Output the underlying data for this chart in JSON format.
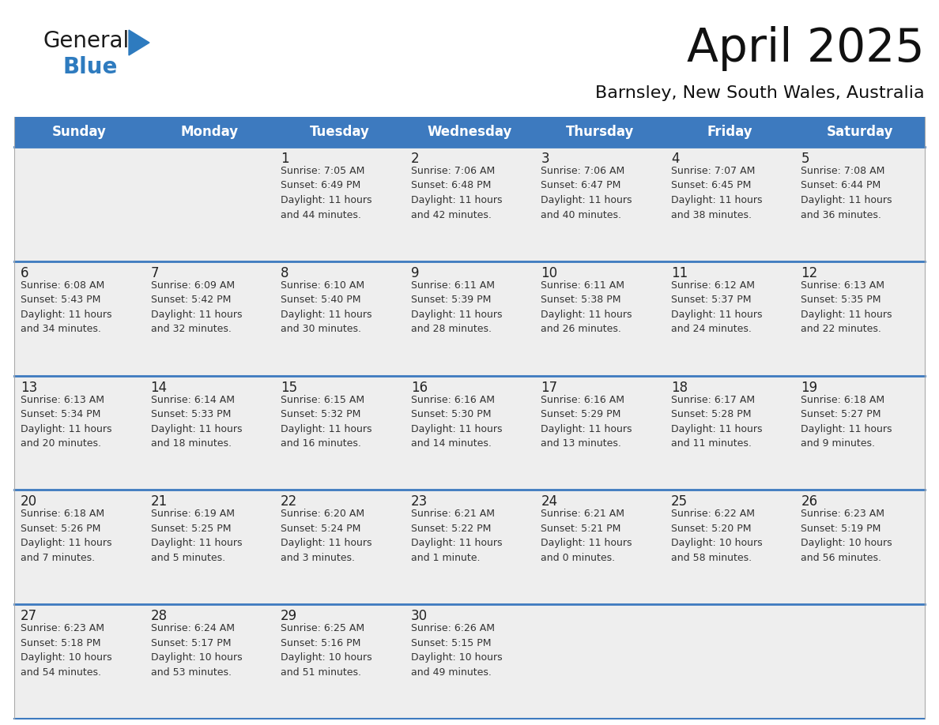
{
  "title": "April 2025",
  "subtitle": "Barnsley, New South Wales, Australia",
  "header_bg": "#3d7abf",
  "header_text": "#ffffff",
  "row_bg": "#eeeeee",
  "cell_text": "#333333",
  "blue_line": "#3d7abf",
  "days_of_week": [
    "Sunday",
    "Monday",
    "Tuesday",
    "Wednesday",
    "Thursday",
    "Friday",
    "Saturday"
  ],
  "logo_general_color": "#1a1a1a",
  "logo_blue_color": "#2e7bbf",
  "logo_triangle_color": "#2e7bbf",
  "weeks": [
    [
      {
        "day": "",
        "info": ""
      },
      {
        "day": "",
        "info": ""
      },
      {
        "day": "1",
        "info": "Sunrise: 7:05 AM\nSunset: 6:49 PM\nDaylight: 11 hours\nand 44 minutes."
      },
      {
        "day": "2",
        "info": "Sunrise: 7:06 AM\nSunset: 6:48 PM\nDaylight: 11 hours\nand 42 minutes."
      },
      {
        "day": "3",
        "info": "Sunrise: 7:06 AM\nSunset: 6:47 PM\nDaylight: 11 hours\nand 40 minutes."
      },
      {
        "day": "4",
        "info": "Sunrise: 7:07 AM\nSunset: 6:45 PM\nDaylight: 11 hours\nand 38 minutes."
      },
      {
        "day": "5",
        "info": "Sunrise: 7:08 AM\nSunset: 6:44 PM\nDaylight: 11 hours\nand 36 minutes."
      }
    ],
    [
      {
        "day": "6",
        "info": "Sunrise: 6:08 AM\nSunset: 5:43 PM\nDaylight: 11 hours\nand 34 minutes."
      },
      {
        "day": "7",
        "info": "Sunrise: 6:09 AM\nSunset: 5:42 PM\nDaylight: 11 hours\nand 32 minutes."
      },
      {
        "day": "8",
        "info": "Sunrise: 6:10 AM\nSunset: 5:40 PM\nDaylight: 11 hours\nand 30 minutes."
      },
      {
        "day": "9",
        "info": "Sunrise: 6:11 AM\nSunset: 5:39 PM\nDaylight: 11 hours\nand 28 minutes."
      },
      {
        "day": "10",
        "info": "Sunrise: 6:11 AM\nSunset: 5:38 PM\nDaylight: 11 hours\nand 26 minutes."
      },
      {
        "day": "11",
        "info": "Sunrise: 6:12 AM\nSunset: 5:37 PM\nDaylight: 11 hours\nand 24 minutes."
      },
      {
        "day": "12",
        "info": "Sunrise: 6:13 AM\nSunset: 5:35 PM\nDaylight: 11 hours\nand 22 minutes."
      }
    ],
    [
      {
        "day": "13",
        "info": "Sunrise: 6:13 AM\nSunset: 5:34 PM\nDaylight: 11 hours\nand 20 minutes."
      },
      {
        "day": "14",
        "info": "Sunrise: 6:14 AM\nSunset: 5:33 PM\nDaylight: 11 hours\nand 18 minutes."
      },
      {
        "day": "15",
        "info": "Sunrise: 6:15 AM\nSunset: 5:32 PM\nDaylight: 11 hours\nand 16 minutes."
      },
      {
        "day": "16",
        "info": "Sunrise: 6:16 AM\nSunset: 5:30 PM\nDaylight: 11 hours\nand 14 minutes."
      },
      {
        "day": "17",
        "info": "Sunrise: 6:16 AM\nSunset: 5:29 PM\nDaylight: 11 hours\nand 13 minutes."
      },
      {
        "day": "18",
        "info": "Sunrise: 6:17 AM\nSunset: 5:28 PM\nDaylight: 11 hours\nand 11 minutes."
      },
      {
        "day": "19",
        "info": "Sunrise: 6:18 AM\nSunset: 5:27 PM\nDaylight: 11 hours\nand 9 minutes."
      }
    ],
    [
      {
        "day": "20",
        "info": "Sunrise: 6:18 AM\nSunset: 5:26 PM\nDaylight: 11 hours\nand 7 minutes."
      },
      {
        "day": "21",
        "info": "Sunrise: 6:19 AM\nSunset: 5:25 PM\nDaylight: 11 hours\nand 5 minutes."
      },
      {
        "day": "22",
        "info": "Sunrise: 6:20 AM\nSunset: 5:24 PM\nDaylight: 11 hours\nand 3 minutes."
      },
      {
        "day": "23",
        "info": "Sunrise: 6:21 AM\nSunset: 5:22 PM\nDaylight: 11 hours\nand 1 minute."
      },
      {
        "day": "24",
        "info": "Sunrise: 6:21 AM\nSunset: 5:21 PM\nDaylight: 11 hours\nand 0 minutes."
      },
      {
        "day": "25",
        "info": "Sunrise: 6:22 AM\nSunset: 5:20 PM\nDaylight: 10 hours\nand 58 minutes."
      },
      {
        "day": "26",
        "info": "Sunrise: 6:23 AM\nSunset: 5:19 PM\nDaylight: 10 hours\nand 56 minutes."
      }
    ],
    [
      {
        "day": "27",
        "info": "Sunrise: 6:23 AM\nSunset: 5:18 PM\nDaylight: 10 hours\nand 54 minutes."
      },
      {
        "day": "28",
        "info": "Sunrise: 6:24 AM\nSunset: 5:17 PM\nDaylight: 10 hours\nand 53 minutes."
      },
      {
        "day": "29",
        "info": "Sunrise: 6:25 AM\nSunset: 5:16 PM\nDaylight: 10 hours\nand 51 minutes."
      },
      {
        "day": "30",
        "info": "Sunrise: 6:26 AM\nSunset: 5:15 PM\nDaylight: 10 hours\nand 49 minutes."
      },
      {
        "day": "",
        "info": ""
      },
      {
        "day": "",
        "info": ""
      },
      {
        "day": "",
        "info": ""
      }
    ]
  ]
}
